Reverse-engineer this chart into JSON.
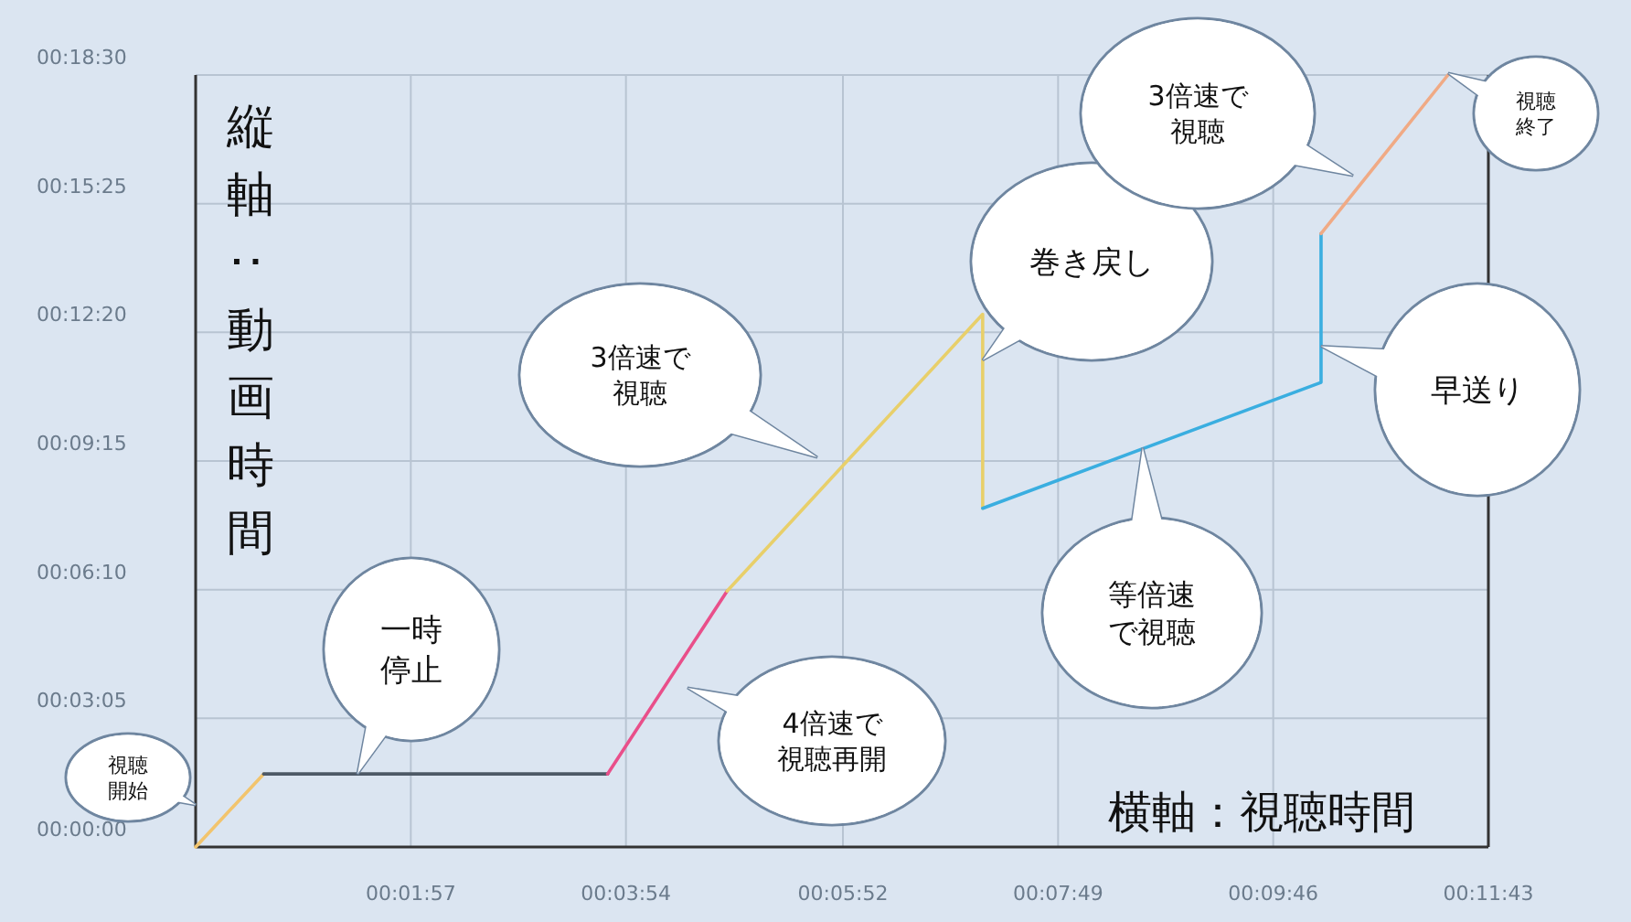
{
  "chart_data": {
    "type": "line",
    "xlim": [
      0,
      703
    ],
    "xticks": [
      {
        "value": 117,
        "label": "00:01:57"
      },
      {
        "value": 234,
        "label": "00:03:54"
      },
      {
        "value": 352,
        "label": "00:05:52"
      },
      {
        "value": 469,
        "label": "00:07:49"
      },
      {
        "value": 586,
        "label": "00:09:46"
      },
      {
        "value": 703,
        "label": "00:11:43"
      }
    ],
    "ylim": [
      0,
      1110
    ],
    "yticks": [
      {
        "value": 0,
        "label": "00:00:00"
      },
      {
        "value": 185,
        "label": "00:03:05"
      },
      {
        "value": 370,
        "label": "00:06:10"
      },
      {
        "value": 555,
        "label": "00:09:15"
      },
      {
        "value": 740,
        "label": "00:12:20"
      },
      {
        "value": 925,
        "label": "00:15:25"
      },
      {
        "value": 1110,
        "label": "00:18:30"
      }
    ],
    "xlabel": "横軸：視聴時間",
    "ylabel": "縦軸：動画時間",
    "grid": true,
    "marker": "none",
    "line_style": "solid",
    "series": [
      {
        "color": "#f2c46d",
        "x": [
          0,
          37
        ],
        "values": [
          0,
          105
        ]
      },
      {
        "color": "#4d5966",
        "x": [
          37,
          224
        ],
        "values": [
          105,
          105
        ]
      },
      {
        "color": "#e94f8a",
        "x": [
          224,
          289
        ],
        "values": [
          105,
          368
        ]
      },
      {
        "color": "#e8cf6a",
        "x": [
          289,
          428,
          428
        ],
        "values": [
          368,
          766,
          487
        ]
      },
      {
        "color": "#3aaee0",
        "x": [
          428,
          612,
          612
        ],
        "values": [
          487,
          668,
          882
        ]
      },
      {
        "color": "#f0aa85",
        "x": [
          612,
          681
        ],
        "values": [
          882,
          1110
        ]
      }
    ],
    "annotations": [
      "視聴開始",
      {
        "text": "一時停止",
        "x": 88,
        "y": 105
      },
      "4倍速で視聴再開",
      "3倍速で視聴",
      {
        "text": "巻き戻し",
        "x": 428,
        "y": 700
      },
      {
        "text": "等倍速で視聴",
        "x": 515,
        "y": 574
      },
      {
        "text": "早送り",
        "x": 612,
        "y": 720
      },
      "3倍速で視聴",
      "視聴終了"
    ]
  }
}
